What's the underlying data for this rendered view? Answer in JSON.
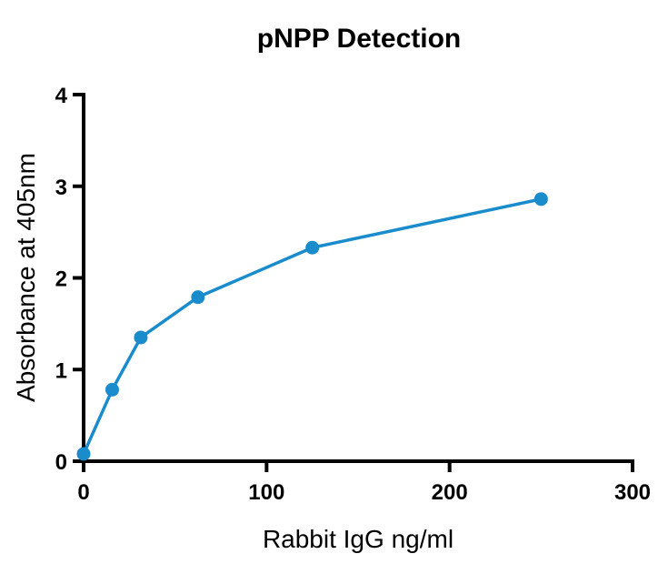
{
  "chart_data": {
    "type": "line",
    "title": "pNPP Detection",
    "xlabel": "Rabbit IgG ng/ml",
    "ylabel": "Absorbance at 405nm",
    "xlim": [
      0,
      300
    ],
    "ylim": [
      0,
      4
    ],
    "xticks": [
      0,
      100,
      200,
      300
    ],
    "yticks": [
      0,
      1,
      2,
      3,
      4
    ],
    "grid": false,
    "color": "#1a8ccc",
    "series": [
      {
        "x": [
          0,
          15.625,
          31.25,
          62.5,
          125,
          250
        ],
        "y": [
          0.08,
          0.78,
          1.35,
          1.79,
          2.33,
          2.86
        ]
      }
    ]
  }
}
